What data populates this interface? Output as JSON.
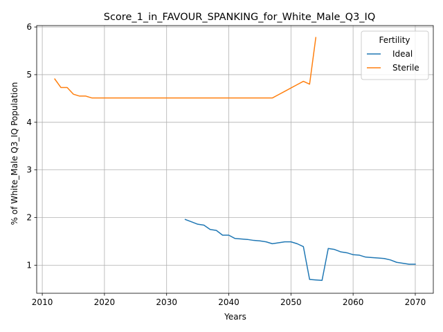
{
  "chart_data": {
    "type": "line",
    "title": "Score_1_in_FAVOUR_SPANKING_for_White_Male_Q3_IQ",
    "xlabel": "Years",
    "ylabel": "% of White_Male Q3_IQ Population",
    "xlim": [
      2009.1,
      2072.9
    ],
    "ylim": [
      0.41,
      6.03
    ],
    "xticks": [
      2010,
      2020,
      2030,
      2040,
      2050,
      2060,
      2070
    ],
    "yticks": [
      1,
      2,
      3,
      4,
      5,
      6
    ],
    "grid": true,
    "legend": {
      "title": "Fertility",
      "placement": "top-right"
    },
    "series": [
      {
        "name": "Ideal",
        "color": "#1f77b4",
        "x": [
          2033,
          2034,
          2035,
          2036,
          2037,
          2038,
          2039,
          2040,
          2041,
          2042,
          2043,
          2044,
          2045,
          2046,
          2047,
          2048,
          2049,
          2050,
          2051,
          2052,
          2053,
          2054,
          2055,
          2056,
          2057,
          2058,
          2059,
          2060,
          2061,
          2062,
          2063,
          2064,
          2065,
          2066,
          2067,
          2068,
          2069,
          2070
        ],
        "y": [
          1.96,
          1.91,
          1.86,
          1.84,
          1.75,
          1.73,
          1.63,
          1.63,
          1.56,
          1.55,
          1.54,
          1.52,
          1.51,
          1.49,
          1.45,
          1.47,
          1.49,
          1.49,
          1.45,
          1.39,
          0.7,
          0.69,
          0.68,
          1.35,
          1.33,
          1.28,
          1.26,
          1.22,
          1.21,
          1.17,
          1.16,
          1.15,
          1.14,
          1.11,
          1.06,
          1.04,
          1.02,
          1.02
        ]
      },
      {
        "name": "Sterile",
        "color": "#ff7f0e",
        "x": [
          2012,
          2013,
          2014,
          2015,
          2016,
          2017,
          2018,
          2019,
          2020,
          2021,
          2022,
          2023,
          2024,
          2025,
          2026,
          2027,
          2028,
          2029,
          2030,
          2031,
          2032,
          2033,
          2034,
          2035,
          2036,
          2037,
          2038,
          2039,
          2040,
          2041,
          2042,
          2043,
          2044,
          2045,
          2046,
          2047,
          2048,
          2049,
          2050,
          2051,
          2052,
          2053,
          2054
        ],
        "y": [
          4.91,
          4.73,
          4.73,
          4.59,
          4.55,
          4.55,
          4.51,
          4.51,
          4.51,
          4.51,
          4.51,
          4.51,
          4.51,
          4.51,
          4.51,
          4.51,
          4.51,
          4.51,
          4.51,
          4.51,
          4.51,
          4.51,
          4.51,
          4.51,
          4.51,
          4.51,
          4.51,
          4.51,
          4.51,
          4.51,
          4.51,
          4.51,
          4.51,
          4.51,
          4.51,
          4.51,
          4.58,
          4.65,
          4.72,
          4.79,
          4.86,
          4.8,
          5.78
        ]
      }
    ]
  }
}
